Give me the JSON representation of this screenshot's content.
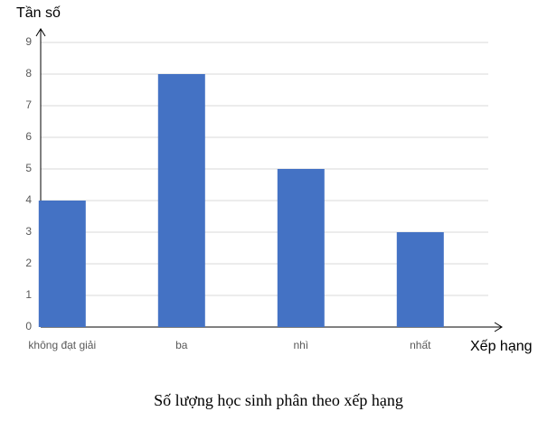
{
  "chart_data": {
    "type": "bar",
    "y_label": "Tần số",
    "x_label": "Xếp hạng",
    "caption": "Số lượng học sinh phân theo xếp hạng",
    "categories": [
      "không đạt giải",
      "ba",
      "nhì",
      "nhất"
    ],
    "values": [
      4,
      8,
      5,
      3
    ],
    "color": "#4472c4",
    "ylim": [
      0,
      9
    ],
    "yticks": [
      0,
      1,
      2,
      3,
      4,
      5,
      6,
      7,
      8,
      9
    ],
    "grid": true
  }
}
